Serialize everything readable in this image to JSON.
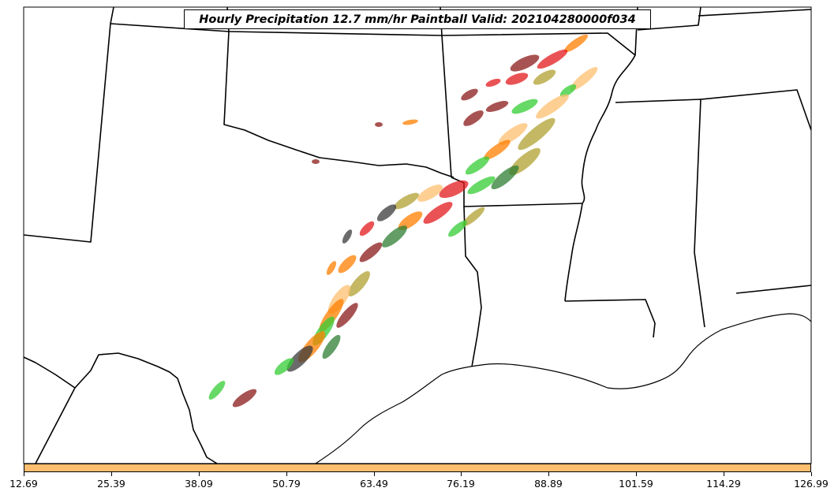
{
  "title": "Hourly Precipitation 12.7 mm/hr Paintball Valid: 202104280000f034",
  "colorbar": {
    "color": "#fdbf6f",
    "ticks": [
      "12.69",
      "25.39",
      "38.09",
      "50.79",
      "63.49",
      "76.19",
      "88.89",
      "101.59",
      "114.29",
      "126.99"
    ]
  },
  "palette": [
    "#8b1a1a",
    "#e31a1c",
    "#33cc33",
    "#ff7f00",
    "#fdbf6f",
    "#b0a030",
    "#2e7d32",
    "#3a3a3a"
  ]
}
